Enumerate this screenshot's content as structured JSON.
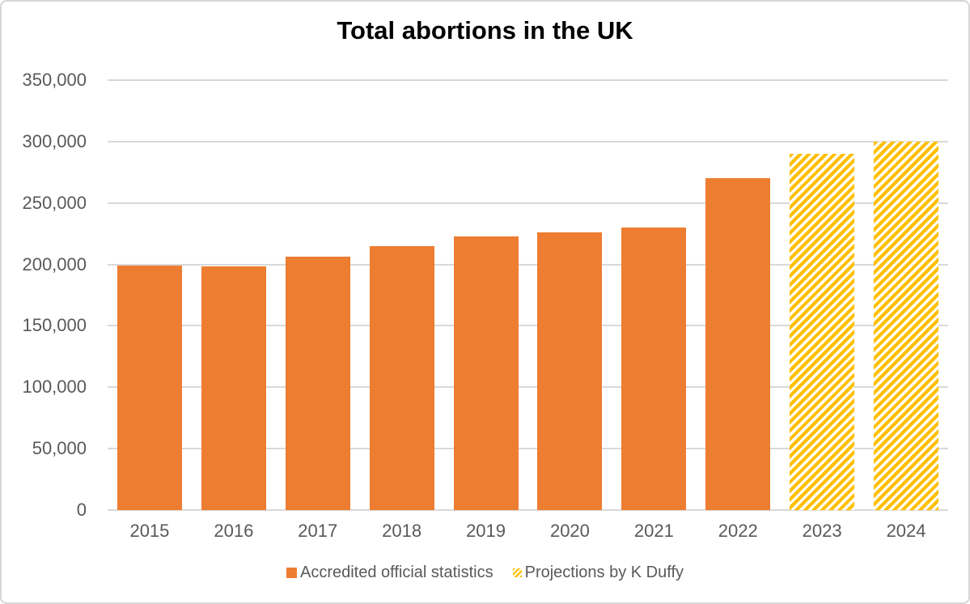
{
  "chart_data": {
    "type": "bar",
    "title": "Total abortions in the UK",
    "categories": [
      "2015",
      "2016",
      "2017",
      "2018",
      "2019",
      "2020",
      "2021",
      "2022",
      "2023",
      "2024"
    ],
    "series": [
      {
        "name": "Accredited official statistics",
        "pattern": "solid",
        "color": "#ED7D31",
        "values": [
          199000,
          198500,
          206000,
          215000,
          222500,
          226000,
          230000,
          270000,
          null,
          null
        ]
      },
      {
        "name": "Projections by K Duffy",
        "pattern": "diagonal-hatch",
        "color": "#FFC000",
        "values": [
          null,
          null,
          null,
          null,
          null,
          null,
          null,
          null,
          290000,
          300000
        ]
      }
    ],
    "xlabel": "",
    "ylabel": "",
    "ylim": [
      0,
      350000
    ],
    "ytick_step": 50000,
    "ytick_labels_top_to_bottom": [
      "350,000",
      "300,000",
      "250,000",
      "200,000",
      "150,000",
      "100,000",
      "50,000",
      "0"
    ],
    "grid": true,
    "legend_position": "bottom"
  },
  "legend": {
    "items": [
      {
        "label": "Accredited official statistics",
        "swatch": "solid-orange"
      },
      {
        "label": "Projections by K Duffy",
        "swatch": "yellow-diagonal-hatch"
      }
    ]
  },
  "colors": {
    "official_bar": "#ED7D31",
    "projection_stripe": "#FFC000",
    "axis_text": "#595959",
    "gridline": "#D9D9D9",
    "title_text": "#000000",
    "canvas_border": "#D6D6D6"
  }
}
